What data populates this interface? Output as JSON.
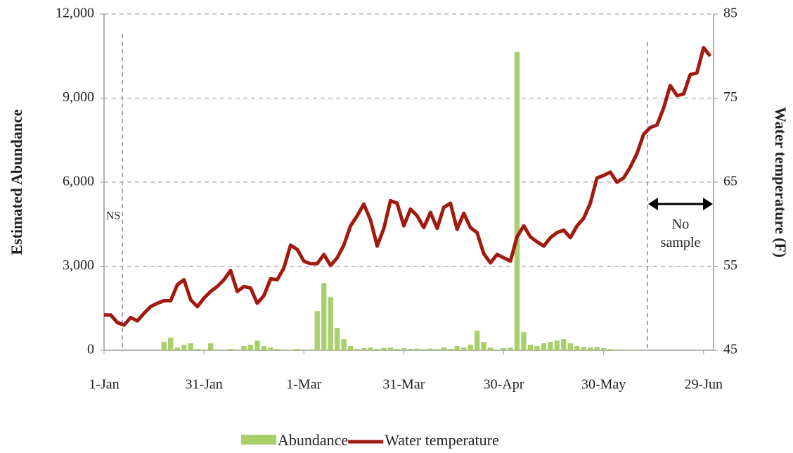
{
  "chart_data": {
    "type": "combo",
    "ylabel": "Estimated Abundance",
    "y2label": "Water temperature (F)",
    "annotations": [
      "NS",
      "No sample"
    ],
    "x": [
      0,
      2,
      4,
      6,
      8,
      10,
      12,
      14,
      16,
      18,
      20,
      22,
      24,
      26,
      28,
      30,
      32,
      34,
      36,
      38,
      40,
      42,
      44,
      46,
      48,
      50,
      52,
      54,
      56,
      58,
      60,
      62,
      64,
      66,
      68,
      70,
      72,
      74,
      76,
      78,
      80,
      82,
      84,
      86,
      88,
      90,
      92,
      94,
      96,
      98,
      100,
      102,
      104,
      106,
      108,
      110,
      112,
      114,
      116,
      118,
      120,
      122,
      124,
      126,
      128,
      130,
      132,
      134,
      136,
      138,
      140,
      142,
      144,
      146,
      148,
      150,
      152,
      154,
      156,
      158,
      160,
      162,
      164,
      166,
      168,
      170,
      172,
      174,
      176,
      178,
      180,
      182
    ],
    "xlim": [
      0,
      183
    ],
    "xticks": [
      {
        "value": 0,
        "label": "1-Jan"
      },
      {
        "value": 30,
        "label": "31-Jan"
      },
      {
        "value": 60,
        "label": "1-Mar"
      },
      {
        "value": 90,
        "label": "31-Mar"
      },
      {
        "value": 120,
        "label": "30-Apr"
      },
      {
        "value": 150,
        "label": "30-May"
      },
      {
        "value": 180,
        "label": "29-Jun"
      }
    ],
    "ylim": [
      0,
      12000
    ],
    "yticks": [
      0,
      {
        "value": 3000,
        "label": "3,000"
      },
      {
        "value": 6000,
        "label": "6,000"
      },
      {
        "value": 9000,
        "label": "9,000"
      },
      {
        "value": 12000,
        "label": "12,000"
      }
    ],
    "y2lim": [
      45,
      85
    ],
    "y2ticks": [
      45,
      55,
      65,
      75,
      85
    ],
    "grid": true,
    "legend": "bottom",
    "series": [
      {
        "name": "Abundance",
        "type": "bar",
        "color": "#a9cf6b",
        "values": [
          0,
          0,
          0,
          0,
          0,
          0,
          0,
          0,
          0,
          300,
          450,
          100,
          200,
          250,
          50,
          0,
          250,
          30,
          0,
          50,
          30,
          150,
          200,
          350,
          150,
          100,
          50,
          30,
          20,
          50,
          0,
          30,
          1400,
          2400,
          1900,
          800,
          400,
          150,
          50,
          80,
          100,
          50,
          80,
          100,
          50,
          80,
          50,
          60,
          40,
          60,
          50,
          100,
          50,
          150,
          100,
          200,
          700,
          300,
          100,
          30,
          80,
          100,
          10650,
          650,
          200,
          150,
          250,
          300,
          350,
          400,
          250,
          150,
          120,
          100,
          120,
          80,
          50,
          30,
          20,
          10,
          10,
          0,
          0,
          0,
          0,
          0,
          0,
          0,
          0,
          0,
          0,
          0
        ]
      },
      {
        "name": "Water temperature",
        "type": "line",
        "axis": "y2",
        "color": "#a11a10",
        "values": [
          49.2,
          49.2,
          48.3,
          48.0,
          48.9,
          48.5,
          49.4,
          50.2,
          50.6,
          50.9,
          50.9,
          52.8,
          53.4,
          51.0,
          50.2,
          51.2,
          52.0,
          52.6,
          53.4,
          54.5,
          52.0,
          52.6,
          52.4,
          50.6,
          51.5,
          53.5,
          53.4,
          54.8,
          57.5,
          57.0,
          55.6,
          55.3,
          55.3,
          56.4,
          55.1,
          56.0,
          57.5,
          59.8,
          61.0,
          62.4,
          60.5,
          57.4,
          59.5,
          62.8,
          62.5,
          59.8,
          61.8,
          61.0,
          59.6,
          61.4,
          59.5,
          62.0,
          62.5,
          59.4,
          61.3,
          59.6,
          59.0,
          56.5,
          55.4,
          56.4,
          56.0,
          55.6,
          58.5,
          59.8,
          58.5,
          57.9,
          57.4,
          58.4,
          59.0,
          59.3,
          58.4,
          59.8,
          60.7,
          62.5,
          65.5,
          65.8,
          66.2,
          65.0,
          65.5,
          66.8,
          68.4,
          70.7,
          71.5,
          71.8,
          73.8,
          76.5,
          75.3,
          75.5,
          77.8,
          78.0,
          81.0,
          80.0
        ]
      }
    ]
  }
}
